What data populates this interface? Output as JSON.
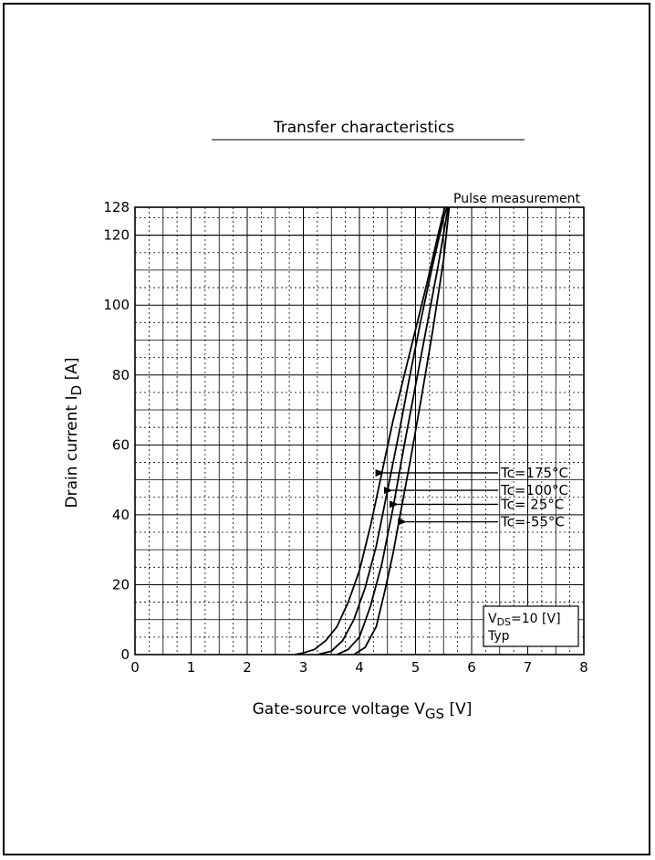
{
  "chart_data": {
    "type": "line",
    "title": "Transfer characteristics",
    "xlabel": "Gate-source voltage  V GS [V]",
    "xlabel_main": "Gate-source voltage  V",
    "xlabel_sub": "GS",
    "xlabel_unit": " [V]",
    "ylabel": "Drain current  I D [A]",
    "ylabel_main": "Drain current  I",
    "ylabel_sub": "D",
    "ylabel_unit": " [A]",
    "xlim": [
      0,
      8
    ],
    "ylim": [
      0,
      128
    ],
    "x_ticks": [
      "0",
      "1",
      "2",
      "3",
      "4",
      "5",
      "6",
      "7",
      "8"
    ],
    "y_ticks": [
      {
        "value": 0,
        "label": "0"
      },
      {
        "value": 20,
        "label": "20"
      },
      {
        "value": 40,
        "label": "40"
      },
      {
        "value": 60,
        "label": "60"
      },
      {
        "value": 80,
        "label": "80"
      },
      {
        "value": 100,
        "label": "100"
      },
      {
        "value": 120,
        "label": "120"
      },
      {
        "value": 128,
        "label": "128"
      }
    ],
    "grid": true,
    "annotation_top_right": "Pulse measurement",
    "conditions_box": {
      "line1_main": "V",
      "line1_sub": "DS",
      "line1_rest": "=10 [V]",
      "line2": "Typ"
    },
    "series": [
      {
        "name": "Tc=175°C",
        "x": [
          2.85,
          3.0,
          3.2,
          3.4,
          3.6,
          3.8,
          4.0,
          4.2,
          4.4,
          4.6,
          4.8,
          5.0,
          5.2,
          5.4,
          5.52
        ],
        "y": [
          0,
          0.5,
          1.5,
          4,
          8,
          15,
          24,
          37,
          52,
          67,
          80,
          93,
          106,
          120,
          128
        ],
        "label_y": 52,
        "arrow_x": 4.4
      },
      {
        "name": "Tc=100°C",
        "x": [
          3.25,
          3.5,
          3.7,
          3.9,
          4.1,
          4.3,
          4.5,
          4.7,
          4.9,
          5.1,
          5.3,
          5.5,
          5.56
        ],
        "y": [
          0,
          1,
          4,
          10,
          19,
          31,
          47,
          63,
          80,
          96,
          111,
          125,
          128
        ],
        "label_y": 47,
        "arrow_x": 4.55
      },
      {
        "name": "Tc= 25°C",
        "x": [
          3.6,
          3.8,
          4.0,
          4.2,
          4.4,
          4.6,
          4.8,
          5.0,
          5.2,
          5.4,
          5.58
        ],
        "y": [
          0,
          1.5,
          5,
          14,
          26,
          42,
          60,
          77,
          94,
          111,
          128
        ],
        "label_y": 43,
        "arrow_x": 4.65
      },
      {
        "name": "Tc=-55°C",
        "x": [
          3.9,
          4.1,
          4.3,
          4.45,
          4.6,
          4.75,
          4.9,
          5.1,
          5.3,
          5.5,
          5.6
        ],
        "y": [
          0,
          2,
          8,
          18,
          29,
          42,
          55,
          73,
          92,
          113,
          128
        ],
        "label_y": 38,
        "arrow_x": 4.8
      }
    ]
  }
}
